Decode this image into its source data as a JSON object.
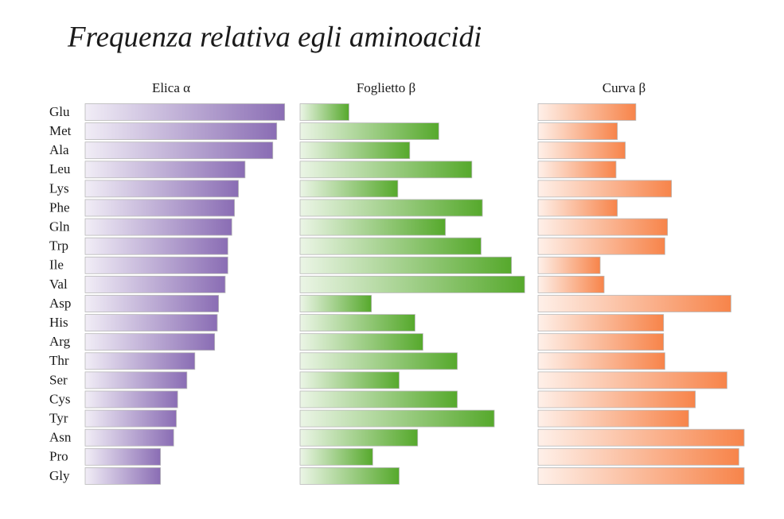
{
  "chart_data": {
    "type": "bar",
    "orientation": "horizontal",
    "title": "Frequenza relativa egli aminoacidi",
    "categories": [
      "Glu",
      "Met",
      "Ala",
      "Leu",
      "Lys",
      "Phe",
      "Gln",
      "Trp",
      "Ile",
      "Val",
      "Asp",
      "His",
      "Arg",
      "Thr",
      "Ser",
      "Cys",
      "Tyr",
      "Asn",
      "Pro",
      "Gly"
    ],
    "series": [
      {
        "name": "Elica α",
        "color": "#8a6db4",
        "values": [
          1.51,
          1.45,
          1.42,
          1.21,
          1.16,
          1.13,
          1.11,
          1.08,
          1.08,
          1.06,
          1.01,
          1.0,
          0.98,
          0.83,
          0.77,
          0.7,
          0.69,
          0.67,
          0.57,
          0.57
        ]
      },
      {
        "name": "Foglietto β",
        "color": "#56a92c",
        "values": [
          0.37,
          1.05,
          0.83,
          1.3,
          0.74,
          1.38,
          1.1,
          1.37,
          1.6,
          1.7,
          0.54,
          0.87,
          0.93,
          1.19,
          0.75,
          1.19,
          1.47,
          0.89,
          0.55,
          0.75
        ]
      },
      {
        "name": "Curva β",
        "color": "#f7844a",
        "values": [
          0.74,
          0.6,
          0.66,
          0.59,
          1.01,
          0.6,
          0.98,
          0.96,
          0.47,
          0.5,
          1.46,
          0.95,
          0.95,
          0.96,
          1.43,
          1.19,
          1.14,
          1.56,
          1.52,
          1.56
        ]
      }
    ]
  }
}
